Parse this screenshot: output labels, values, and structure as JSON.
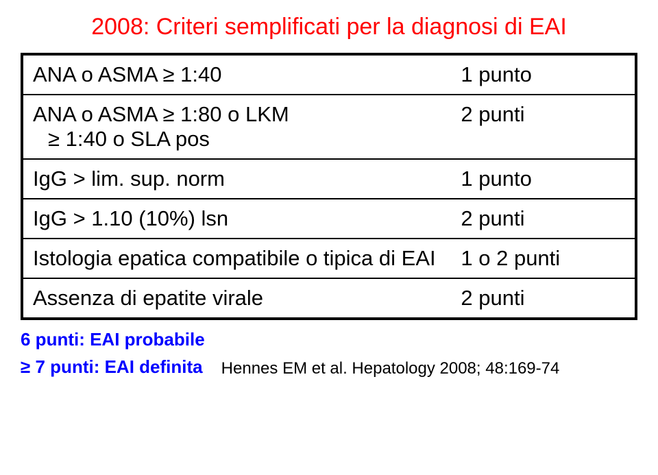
{
  "title": "2008: Criteri semplificati per la diagnosi di EAI",
  "rows": [
    {
      "left_a": "ANA o ASMA ≥ 1:40",
      "left_b": "",
      "right": "1 punto"
    },
    {
      "left_a": "ANA o ASMA ≥ 1:80 o LKM",
      "left_b": "≥ 1:40 o SLA pos",
      "right": "2 punti"
    },
    {
      "left_a": "IgG > lim. sup. norm",
      "left_b": "",
      "right": "1 punto"
    },
    {
      "left_a": "IgG > 1.10 (10%) lsn",
      "left_b": "",
      "right": " 2 punti"
    },
    {
      "left_a": "Istologia epatica compatibile o tipica di EAI",
      "left_b": "",
      "right": "1 o 2 punti"
    },
    {
      "left_a": "Assenza di epatite virale",
      "left_b": "",
      "right": "2 punti"
    }
  ],
  "footer": {
    "line1": "6 punti: EAI probabile",
    "line2": "≥ 7 punti: EAI definita",
    "citation": "Hennes EM et al. Hepatology 2008; 48:169-74"
  },
  "colors": {
    "title": "#ff0000",
    "text": "#000000",
    "footer_blue": "#0000ff",
    "border": "#000000",
    "background": "#ffffff"
  }
}
